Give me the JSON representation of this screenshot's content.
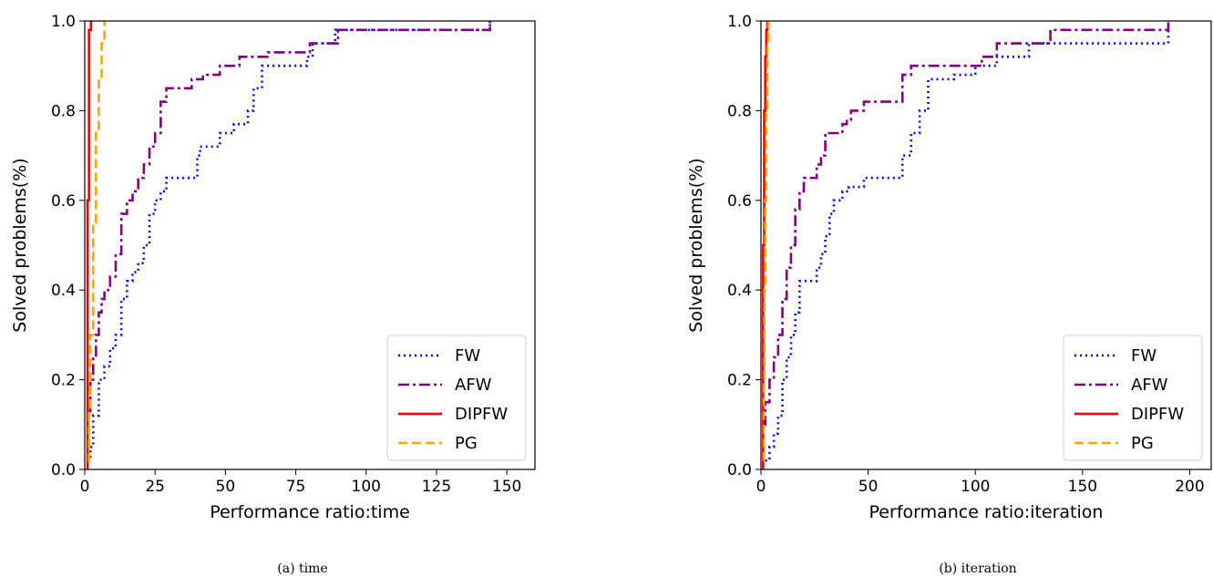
{
  "chart_data": [
    {
      "type": "line",
      "caption": "(a) time",
      "xlabel": "Performance ratio:time",
      "ylabel": "Solved problems(%)",
      "xlim": [
        0,
        160
      ],
      "ylim": [
        0,
        1.0
      ],
      "xticks": [
        0,
        25,
        50,
        75,
        100,
        125,
        150
      ],
      "yticks": [
        0.0,
        0.2,
        0.4,
        0.6,
        0.8,
        1.0
      ],
      "legend_position": "lower-right",
      "grid": false,
      "series": [
        {
          "name": "FW",
          "color": "#0000ff",
          "style": "dotted",
          "x": [
            1,
            2,
            3,
            5,
            7,
            9,
            11,
            13,
            15,
            17,
            19,
            21,
            23,
            25,
            27,
            29,
            31,
            33,
            35,
            40,
            41,
            48,
            53,
            58,
            60,
            63,
            77,
            79,
            81,
            85,
            89,
            95,
            110,
            130,
            144
          ],
          "y": [
            0.02,
            0.05,
            0.12,
            0.2,
            0.23,
            0.27,
            0.3,
            0.38,
            0.42,
            0.44,
            0.46,
            0.5,
            0.57,
            0.6,
            0.62,
            0.65,
            0.65,
            0.65,
            0.65,
            0.7,
            0.72,
            0.75,
            0.77,
            0.8,
            0.85,
            0.9,
            0.9,
            0.92,
            0.95,
            0.95,
            0.98,
            0.98,
            0.98,
            0.98,
            1.0
          ]
        },
        {
          "name": "AFW",
          "color": "#800080",
          "style": "dashdot",
          "x": [
            1,
            2,
            3,
            4,
            5,
            6,
            7,
            9,
            11,
            13,
            15,
            17,
            19,
            21,
            23,
            25,
            27,
            29,
            33,
            38,
            42,
            48,
            55,
            60,
            65,
            75,
            80,
            85,
            90,
            100,
            120,
            143,
            144
          ],
          "y": [
            0.13,
            0.2,
            0.25,
            0.3,
            0.35,
            0.38,
            0.4,
            0.43,
            0.48,
            0.57,
            0.6,
            0.62,
            0.65,
            0.68,
            0.72,
            0.75,
            0.82,
            0.85,
            0.85,
            0.87,
            0.88,
            0.9,
            0.92,
            0.92,
            0.93,
            0.93,
            0.95,
            0.95,
            0.98,
            0.98,
            0.98,
            0.98,
            1.0
          ]
        },
        {
          "name": "DIPFW",
          "color": "#ee0000",
          "style": "solid",
          "x": [
            1,
            1,
            1.5,
            2,
            2.2,
            2.4
          ],
          "y": [
            0.0,
            0.6,
            0.98,
            0.98,
            1.0,
            1.0
          ]
        },
        {
          "name": "PG",
          "color": "#ffa500",
          "style": "dashed",
          "x": [
            1,
            1.5,
            2,
            3,
            4,
            5,
            6,
            7
          ],
          "y": [
            0.02,
            0.13,
            0.3,
            0.55,
            0.75,
            0.87,
            0.95,
            1.0
          ]
        }
      ]
    },
    {
      "type": "line",
      "caption": "(b) iteration",
      "xlabel": "Performance ratio:iteration",
      "ylabel": "Solved problems(%)",
      "xlim": [
        0,
        210
      ],
      "ylim": [
        0,
        1.0
      ],
      "xticks": [
        0,
        50,
        100,
        150,
        200
      ],
      "yticks": [
        0.0,
        0.2,
        0.4,
        0.6,
        0.8,
        1.0
      ],
      "legend_position": "lower-right",
      "grid": false,
      "series": [
        {
          "name": "FW",
          "color": "#0000ff",
          "style": "dotted",
          "x": [
            2,
            4,
            6,
            8,
            10,
            12,
            14,
            16,
            18,
            20,
            24,
            26,
            28,
            30,
            32,
            34,
            38,
            41,
            48,
            55,
            62,
            66,
            70,
            74,
            78,
            90,
            100,
            110,
            125,
            190
          ],
          "y": [
            0.02,
            0.05,
            0.08,
            0.12,
            0.2,
            0.25,
            0.3,
            0.35,
            0.42,
            0.42,
            0.42,
            0.45,
            0.48,
            0.52,
            0.57,
            0.6,
            0.62,
            0.63,
            0.65,
            0.65,
            0.65,
            0.7,
            0.75,
            0.8,
            0.87,
            0.88,
            0.9,
            0.92,
            0.95,
            1.0
          ]
        },
        {
          "name": "AFW",
          "color": "#800080",
          "style": "dashdot",
          "x": [
            1,
            2,
            4,
            6,
            8,
            10,
            12,
            14,
            16,
            18,
            20,
            24,
            26,
            28,
            30,
            34,
            38,
            40,
            42,
            48,
            55,
            63,
            66,
            70,
            80,
            100,
            103,
            110,
            130,
            135,
            150,
            188,
            190
          ],
          "y": [
            0.1,
            0.15,
            0.2,
            0.25,
            0.3,
            0.38,
            0.45,
            0.5,
            0.58,
            0.62,
            0.65,
            0.65,
            0.68,
            0.7,
            0.75,
            0.75,
            0.77,
            0.78,
            0.8,
            0.82,
            0.82,
            0.82,
            0.88,
            0.9,
            0.9,
            0.9,
            0.92,
            0.95,
            0.95,
            0.98,
            0.98,
            0.98,
            1.0
          ]
        },
        {
          "name": "DIPFW",
          "color": "#ee0000",
          "style": "solid",
          "x": [
            1,
            1,
            1.5,
            2,
            2.5,
            3
          ],
          "y": [
            0.0,
            0.5,
            0.8,
            0.92,
            0.98,
            1.0
          ]
        },
        {
          "name": "PG",
          "color": "#ffa500",
          "style": "dashed",
          "x": [
            1,
            1.3,
            1.6,
            2,
            2.5,
            3,
            3.5
          ],
          "y": [
            0.02,
            0.2,
            0.4,
            0.6,
            0.8,
            0.95,
            1.0
          ]
        }
      ]
    }
  ]
}
